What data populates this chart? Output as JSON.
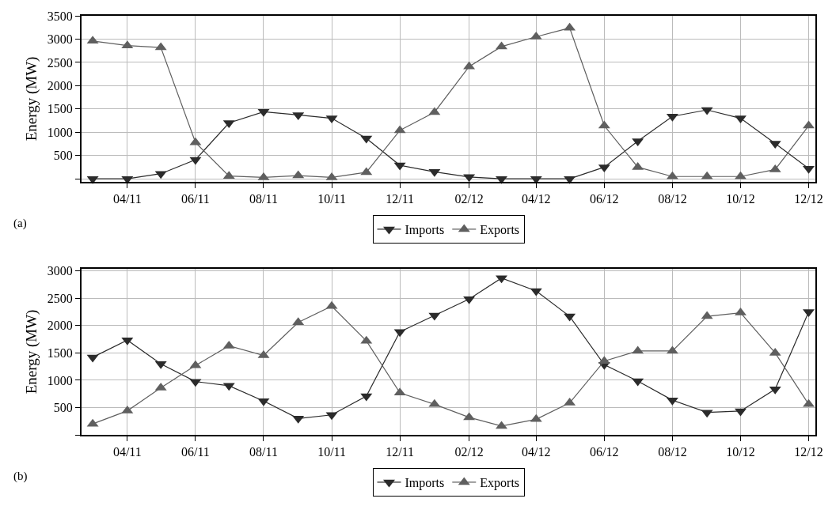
{
  "chart_data": [
    {
      "type": "line",
      "ylabel": "Energy (MW)",
      "annotations": [
        "(a)"
      ],
      "x": [
        "2011-03",
        "2011-04",
        "2011-05",
        "2011-06",
        "2011-07",
        "2011-08",
        "2011-09",
        "2011-10",
        "2011-11",
        "2011-12",
        "2012-01",
        "2012-02",
        "2012-03",
        "2012-04",
        "2012-05",
        "2012-06",
        "2012-07",
        "2012-08",
        "2012-09",
        "2012-10",
        "2012-11",
        "2012-12"
      ],
      "series": [
        {
          "name": "Imports",
          "color": "#2b2b2b",
          "marker": "triangle-down",
          "values": [
            0,
            0,
            110,
            410,
            1200,
            1440,
            1370,
            1300,
            870,
            290,
            150,
            40,
            0,
            0,
            0,
            250,
            810,
            1340,
            1480,
            1300,
            760,
            220
          ]
        },
        {
          "name": "Exports",
          "color": "#5f5f5f",
          "marker": "triangle-up",
          "values": [
            2960,
            2860,
            2820,
            780,
            60,
            30,
            70,
            30,
            140,
            1040,
            1430,
            2410,
            2840,
            3050,
            3240,
            1140,
            250,
            50,
            50,
            50,
            200,
            1140
          ]
        }
      ],
      "xlim": [
        "2011-02-19",
        "2012-12-07"
      ],
      "xticks": [
        {
          "value": "2011-04",
          "label": "04/11"
        },
        {
          "value": "2011-06",
          "label": "06/11"
        },
        {
          "value": "2011-08",
          "label": "08/11"
        },
        {
          "value": "2011-10",
          "label": "10/11"
        },
        {
          "value": "2011-12",
          "label": "12/11"
        },
        {
          "value": "2012-02",
          "label": "02/12"
        },
        {
          "value": "2012-04",
          "label": "04/12"
        },
        {
          "value": "2012-06",
          "label": "06/12"
        },
        {
          "value": "2012-08",
          "label": "08/12"
        },
        {
          "value": "2012-10",
          "label": "10/12"
        },
        {
          "value": "2012-12",
          "label": "12/12"
        }
      ],
      "ylim": [
        -65,
        3500
      ],
      "yticks": [
        {
          "value": 0,
          "label": null
        },
        500,
        1000,
        1500,
        2000,
        2500,
        3000,
        3500
      ],
      "grid": true,
      "legend": "bottom",
      "line_style": "solid"
    },
    {
      "type": "line",
      "ylabel": "Energy (MW)",
      "annotations": [
        "(b)"
      ],
      "x": [
        "2011-03",
        "2011-04",
        "2011-05",
        "2011-06",
        "2011-07",
        "2011-08",
        "2011-09",
        "2011-10",
        "2011-11",
        "2011-12",
        "2012-01",
        "2012-02",
        "2012-03",
        "2012-04",
        "2012-05",
        "2012-06",
        "2012-07",
        "2012-08",
        "2012-09",
        "2012-10",
        "2012-11",
        "2012-12"
      ],
      "series": [
        {
          "name": "Imports",
          "color": "#2b2b2b",
          "marker": "triangle-down",
          "values": [
            1420,
            1735,
            1300,
            975,
            900,
            620,
            300,
            365,
            710,
            1885,
            2185,
            2485,
            2870,
            2635,
            2170,
            1285,
            985,
            635,
            410,
            435,
            835,
            2250
          ]
        },
        {
          "name": "Exports",
          "color": "#5f5f5f",
          "marker": "triangle-up",
          "values": [
            200,
            440,
            860,
            1270,
            1630,
            1455,
            2060,
            2355,
            1720,
            770,
            560,
            320,
            160,
            285,
            585,
            1350,
            1535,
            1535,
            2170,
            2235,
            1500,
            560
          ]
        }
      ],
      "xlim": [
        "2011-02-19",
        "2012-12-07"
      ],
      "xticks": [
        {
          "value": "2011-04",
          "label": "04/11"
        },
        {
          "value": "2011-06",
          "label": "06/11"
        },
        {
          "value": "2011-08",
          "label": "08/11"
        },
        {
          "value": "2011-10",
          "label": "10/11"
        },
        {
          "value": "2011-12",
          "label": "12/11"
        },
        {
          "value": "2012-02",
          "label": "02/12"
        },
        {
          "value": "2012-04",
          "label": "04/12"
        },
        {
          "value": "2012-06",
          "label": "06/12"
        },
        {
          "value": "2012-08",
          "label": "08/12"
        },
        {
          "value": "2012-10",
          "label": "10/12"
        },
        {
          "value": "2012-12",
          "label": "12/12"
        }
      ],
      "ylim": [
        0,
        3040
      ],
      "yticks": [
        {
          "value": 0,
          "label": null
        },
        500,
        1000,
        1500,
        2000,
        2500,
        3000
      ],
      "grid": true,
      "legend": "bottom",
      "line_style": "solid"
    }
  ]
}
